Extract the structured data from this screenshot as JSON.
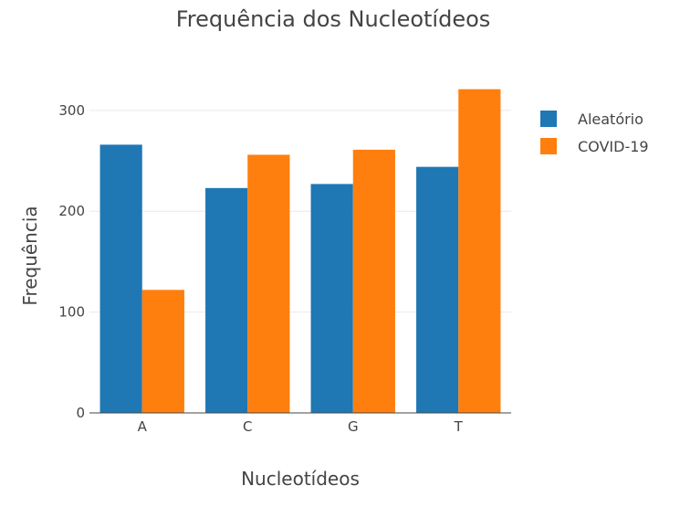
{
  "chart_data": {
    "type": "bar",
    "title": "Frequência dos Nucleotídeos",
    "xlabel": "Nucleotídeos",
    "ylabel": "Frequência",
    "categories": [
      "A",
      "C",
      "G",
      "T"
    ],
    "series": [
      {
        "name": "Aleatório",
        "values": [
          266,
          223,
          227,
          244
        ],
        "color": "#1f77b4"
      },
      {
        "name": "COVID-19",
        "values": [
          122,
          256,
          261,
          321
        ],
        "color": "#ff7f0e"
      }
    ],
    "ylim": [
      0,
      337
    ],
    "yticks": [
      0,
      100,
      200,
      300
    ],
    "grid": true,
    "legend": "top-right"
  }
}
